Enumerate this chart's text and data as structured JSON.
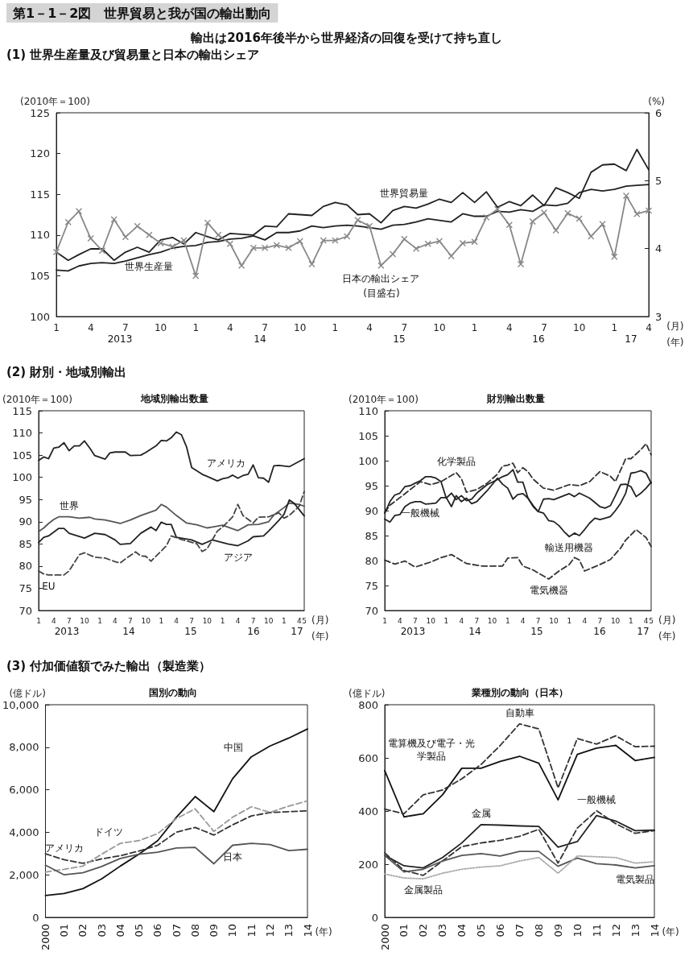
{
  "chart_data": [
    {
      "type": "line",
      "title": "第1－1－2図　世界貿易と我が国の輸出動向",
      "subtitle": "輸出は2016年後半から世界経済の回復を受けて持ち直し",
      "ylabel": "(2010年＝100)",
      "y2label": "(%)",
      "xlabel": "(月)\n(年)",
      "annotations": [
        "(1) 世界生産量及び貿易量と日本の輸出シェア",
        "(目盛右)",
        "2013",
        "14",
        "15",
        "16",
        "17"
      ],
      "x": [
        "2013-01",
        "2013-02",
        "2013-03",
        "2013-04",
        "2013-05",
        "2013-06",
        "2013-07",
        "2013-08",
        "2013-09",
        "2013-10",
        "2013-11",
        "2013-12",
        "2014-01",
        "2014-02",
        "2014-03",
        "2014-04",
        "2014-05",
        "2014-06",
        "2014-07",
        "2014-08",
        "2014-09",
        "2014-10",
        "2014-11",
        "2014-12",
        "2015-01",
        "2015-02",
        "2015-03",
        "2015-04",
        "2015-05",
        "2015-06",
        "2015-07",
        "2015-08",
        "2015-09",
        "2015-10",
        "2015-11",
        "2015-12",
        "2016-01",
        "2016-02",
        "2016-03",
        "2016-04",
        "2016-05",
        "2016-06",
        "2016-07",
        "2016-08",
        "2016-09",
        "2016-10",
        "2016-11",
        "2016-12",
        "2017-01",
        "2017-02",
        "2017-03",
        "2017-04"
      ],
      "xlim": [
        "2013-01",
        "2017-04"
      ],
      "xticks": [
        {
          "value": "2013-01",
          "label": "1"
        },
        {
          "value": "2013-04",
          "label": "4"
        },
        {
          "value": "2013-07",
          "label": "7"
        },
        {
          "value": "2013-10",
          "label": "10"
        },
        {
          "value": "2014-01",
          "label": "1"
        },
        {
          "value": "2014-04",
          "label": "4"
        },
        {
          "value": "2014-07",
          "label": "7"
        },
        {
          "value": "2014-10",
          "label": "10"
        },
        {
          "value": "2015-01",
          "label": "1"
        },
        {
          "value": "2015-04",
          "label": "4"
        },
        {
          "value": "2015-07",
          "label": "7"
        },
        {
          "value": "2015-10",
          "label": "10"
        },
        {
          "value": "2016-01",
          "label": "1"
        },
        {
          "value": "2016-04",
          "label": "4"
        },
        {
          "value": "2016-07",
          "label": "7"
        },
        {
          "value": "2016-10",
          "label": "10"
        },
        {
          "value": "2017-01",
          "label": "1"
        },
        {
          "value": "2017-04",
          "label": "4"
        }
      ],
      "ylim": [
        100,
        125
      ],
      "yticks": [
        100,
        105,
        110,
        115,
        120,
        125
      ],
      "y2lim": [
        3,
        6
      ],
      "y2ticks": [
        3,
        4,
        5,
        6
      ],
      "series": [
        {
          "name": "世界貿易量",
          "color": "#222222",
          "line_style": "solid",
          "marker": "none",
          "values": [
            107.9,
            106.9,
            107.6,
            108.3,
            108.3,
            106.9,
            107.9,
            108.5,
            107.9,
            109.4,
            109.7,
            108.9,
            110.3,
            109.8,
            109.4,
            110.2,
            110.1,
            110,
            111.1,
            111,
            112.6,
            112.5,
            112.4,
            113.5,
            114,
            113.7,
            112.5,
            112.6,
            111.5,
            113,
            113.5,
            113.3,
            113.8,
            114.4,
            114,
            115.2,
            114,
            115.3,
            113.4,
            114.1,
            113.6,
            114.9,
            113.6,
            115.8,
            115.2,
            114.5,
            117.7,
            118.6,
            118.7,
            117.9,
            120.5,
            118
          ]
        },
        {
          "name": "世界生産量",
          "color": "#222222",
          "line_style": "solid",
          "marker": "none",
          "values": [
            105.7,
            105.6,
            106.2,
            106.5,
            106.6,
            106.5,
            106.8,
            107.2,
            107.6,
            107.9,
            108.4,
            108.6,
            108.7,
            109.1,
            109.2,
            109.5,
            109.6,
            109.9,
            109.4,
            110.3,
            110.3,
            110.5,
            111.1,
            110.9,
            111.1,
            111.2,
            111.1,
            110.9,
            110.7,
            111.2,
            111.3,
            111.6,
            112,
            111.8,
            111.6,
            112.6,
            112.3,
            112.3,
            112.9,
            112.8,
            113.1,
            112.9,
            113.7,
            113.6,
            113.9,
            115.2,
            115.6,
            115.4,
            115.6,
            116,
            116.1,
            116.2
          ]
        },
        {
          "name": "日本の輸出シェア",
          "color": "#888888",
          "line_style": "solid",
          "marker": "cross",
          "axis": "y2",
          "values": [
            3.95,
            4.39,
            4.55,
            4.15,
            3.97,
            4.43,
            4.17,
            4.33,
            4.2,
            4.08,
            4.03,
            4.12,
            3.6,
            4.38,
            4.2,
            4.07,
            3.75,
            4.01,
            4.01,
            4.05,
            4.01,
            4.11,
            3.77,
            4.12,
            4.12,
            4.18,
            4.42,
            4.33,
            3.75,
            3.92,
            4.14,
            4,
            4.07,
            4.11,
            3.89,
            4.08,
            4.1,
            4.46,
            4.58,
            4.35,
            3.77,
            4.4,
            4.53,
            4.27,
            4.52,
            4.44,
            4.18,
            4.36,
            3.88,
            4.78,
            4.51,
            4.56
          ]
        }
      ],
      "grid": false
    },
    {
      "type": "line",
      "title": "地域別輸出数量",
      "ylabel": "(2010年＝100)",
      "xlabel": "(月)\n(年)",
      "annotations": [
        "(2) 財別・地域別輸出",
        "2013",
        "14",
        "15",
        "16",
        "17"
      ],
      "xlim": [
        "2013-01",
        "2017-05"
      ],
      "xticks": [
        {
          "value": "2013-01",
          "label": "1"
        },
        {
          "value": "2013-04",
          "label": "4"
        },
        {
          "value": "2013-07",
          "label": "7"
        },
        {
          "value": "2013-10",
          "label": "10"
        },
        {
          "value": "2014-01",
          "label": "1"
        },
        {
          "value": "2014-04",
          "label": "4"
        },
        {
          "value": "2014-07",
          "label": "7"
        },
        {
          "value": "2014-10",
          "label": "10"
        },
        {
          "value": "2015-01",
          "label": "1"
        },
        {
          "value": "2015-04",
          "label": "4"
        },
        {
          "value": "2015-07",
          "label": "7"
        },
        {
          "value": "2015-10",
          "label": "10"
        },
        {
          "value": "2016-01",
          "label": "1"
        },
        {
          "value": "2016-04",
          "label": "4"
        },
        {
          "value": "2016-07",
          "label": "7"
        },
        {
          "value": "2016-10",
          "label": "10"
        },
        {
          "value": "2017-01",
          "label": "1"
        },
        {
          "value": "2017-04",
          "label": "4"
        },
        {
          "value": "2017-05",
          "label": "5"
        }
      ],
      "ylim": [
        70,
        115
      ],
      "yticks": [
        70,
        75,
        80,
        85,
        90,
        95,
        100,
        105,
        110,
        115
      ],
      "series": [
        {
          "name": "アメリカ",
          "color": "#222222",
          "line_style": "solid",
          "x": [
            "2013-01",
            "2013-02",
            "2013-03",
            "2013-04",
            "2013-05",
            "2013-06",
            "2013-07",
            "2013-08",
            "2013-09",
            "2013-10",
            "2013-11",
            "2013-12",
            "2014-02",
            "2014-03",
            "2014-04",
            "2014-06",
            "2014-07",
            "2014-09",
            "2014-10",
            "2014-12",
            "2015-01",
            "2015-02",
            "2015-03",
            "2015-04",
            "2015-05",
            "2015-06",
            "2015-07",
            "2015-09",
            "2015-11",
            "2015-12",
            "2016-01",
            "2016-02",
            "2016-03",
            "2016-04",
            "2016-05",
            "2016-06",
            "2016-07",
            "2016-08",
            "2016-09",
            "2016-10",
            "2016-11",
            "2016-12",
            "2017-02",
            "2017-05"
          ],
          "values": [
            103.8,
            104.6,
            104.2,
            106.6,
            106.8,
            107.8,
            106,
            107.1,
            107.1,
            108.2,
            106.6,
            104.9,
            104.1,
            105.5,
            105.7,
            105.7,
            104.9,
            105,
            105.6,
            107.1,
            108.3,
            108.2,
            108.9,
            110.2,
            109.6,
            106.8,
            102.2,
            100.7,
            99.7,
            99.2,
            99.7,
            99.9,
            100.5,
            99.8,
            100.4,
            100.7,
            102.8,
            99.9,
            99.8,
            98.9,
            102.6,
            102.7,
            102.4,
            104.2
          ]
        },
        {
          "name": "世界",
          "color": "#555555",
          "line_style": "solid",
          "x": [
            "2013-01",
            "2013-02",
            "2013-03",
            "2013-04",
            "2013-05",
            "2013-07",
            "2013-09",
            "2013-11",
            "2013-12",
            "2014-02",
            "2014-04",
            "2014-05",
            "2014-07",
            "2014-09",
            "2014-12",
            "2015-01",
            "2015-02",
            "2015-04",
            "2015-06",
            "2015-08",
            "2015-10",
            "2015-11",
            "2016-01",
            "2016-04",
            "2016-06",
            "2016-08",
            "2016-10",
            "2016-11",
            "2017-01",
            "2017-02",
            "2017-04",
            "2017-05"
          ],
          "values": [
            87.8,
            88.6,
            89.6,
            90.5,
            91.1,
            91.1,
            90.8,
            91,
            90.6,
            90.4,
            89.9,
            89.6,
            90.4,
            91.4,
            92.6,
            93.9,
            93.3,
            91.4,
            89.7,
            89.3,
            88.6,
            88.8,
            89.2,
            88,
            89.3,
            89.4,
            90,
            91.5,
            93.2,
            94.2,
            93.9,
            93.5
          ]
        },
        {
          "name": "アジア",
          "color": "#222222",
          "line_style": "solid",
          "x": [
            "2013-01",
            "2013-02",
            "2013-03",
            "2013-05",
            "2013-06",
            "2013-07",
            "2013-10",
            "2013-12",
            "2014-02",
            "2014-04",
            "2014-05",
            "2014-07",
            "2014-09",
            "2014-11",
            "2014-12",
            "2015-01",
            "2015-02",
            "2015-03",
            "2015-04",
            "2015-07",
            "2015-09",
            "2015-11",
            "2016-02",
            "2016-04",
            "2016-06",
            "2016-07",
            "2016-09",
            "2016-10",
            "2016-12",
            "2017-01",
            "2017-02",
            "2017-03",
            "2017-05"
          ],
          "values": [
            85.3,
            86.5,
            86.8,
            88.5,
            88.5,
            87.4,
            86.3,
            87.4,
            87.1,
            85.9,
            84.9,
            85.1,
            87.4,
            88.8,
            88,
            89.9,
            89.4,
            89.4,
            86.5,
            85.9,
            84.9,
            85.9,
            85,
            84.6,
            85.7,
            86.6,
            86.8,
            87.9,
            90.3,
            91.7,
            94.9,
            94.2,
            91.3
          ]
        },
        {
          "name": "EU",
          "color": "#444444",
          "line_style": "dashed",
          "x": [
            "2013-01",
            "2013-02",
            "2013-03",
            "2013-06",
            "2013-07",
            "2013-09",
            "2013-10",
            "2013-12",
            "2014-02",
            "2014-04",
            "2014-05",
            "2014-06",
            "2014-08",
            "2014-09",
            "2014-10",
            "2014-11",
            "2015-02",
            "2015-03",
            "2015-05",
            "2015-08",
            "2015-09",
            "2015-10",
            "2015-12",
            "2016-01",
            "2016-03",
            "2016-04",
            "2016-05",
            "2016-07",
            "2016-08",
            "2016-10",
            "2016-12",
            "2017-01",
            "2017-02",
            "2017-04",
            "2017-05"
          ],
          "values": [
            78.9,
            78.2,
            78,
            78,
            78.9,
            82.6,
            83,
            82,
            81.8,
            81,
            80.7,
            81.6,
            83.2,
            82.3,
            82.2,
            81.1,
            84.6,
            86.8,
            86,
            85,
            83.3,
            83.9,
            87.9,
            88.8,
            91.1,
            93.9,
            91.4,
            89.7,
            91,
            91.1,
            92,
            90.8,
            91.4,
            93.5,
            96.8
          ]
        }
      ],
      "grid": false
    },
    {
      "type": "line",
      "title": "財別輸出数量",
      "ylabel": "(2010年＝100)",
      "xlabel": "(月)\n(年)",
      "annotations": [
        "2013",
        "14",
        "15",
        "16",
        "17"
      ],
      "xlim": [
        "2013-01",
        "2017-05"
      ],
      "xticks": [
        {
          "value": "2013-01",
          "label": "1"
        },
        {
          "value": "2013-04",
          "label": "4"
        },
        {
          "value": "2013-07",
          "label": "7"
        },
        {
          "value": "2013-10",
          "label": "10"
        },
        {
          "value": "2014-01",
          "label": "1"
        },
        {
          "value": "2014-04",
          "label": "4"
        },
        {
          "value": "2014-07",
          "label": "7"
        },
        {
          "value": "2014-10",
          "label": "10"
        },
        {
          "value": "2015-01",
          "label": "1"
        },
        {
          "value": "2015-04",
          "label": "4"
        },
        {
          "value": "2015-07",
          "label": "7"
        },
        {
          "value": "2015-10",
          "label": "10"
        },
        {
          "value": "2016-01",
          "label": "1"
        },
        {
          "value": "2016-04",
          "label": "4"
        },
        {
          "value": "2016-07",
          "label": "7"
        },
        {
          "value": "2016-10",
          "label": "10"
        },
        {
          "value": "2017-01",
          "label": "1"
        },
        {
          "value": "2017-04",
          "label": "4"
        },
        {
          "value": "2017-05",
          "label": "5"
        }
      ],
      "ylim": [
        70,
        110
      ],
      "yticks": [
        70,
        75,
        80,
        85,
        90,
        95,
        100,
        105,
        110
      ],
      "series": [
        {
          "name": "化学製品",
          "color": "#333333",
          "line_style": "dashed",
          "x": [
            "2013-01",
            "2013-02",
            "2013-04",
            "2013-06",
            "2013-08",
            "2013-10",
            "2013-12",
            "2014-03",
            "2014-04",
            "2014-05",
            "2014-07",
            "2014-09",
            "2014-11",
            "2014-12",
            "2015-01",
            "2015-02",
            "2015-03",
            "2015-04",
            "2015-05",
            "2015-06",
            "2015-08",
            "2015-10",
            "2016-01",
            "2016-03",
            "2016-05",
            "2016-07",
            "2016-09",
            "2016-10",
            "2016-12",
            "2017-01",
            "2017-03",
            "2017-04",
            "2017-05"
          ],
          "values": [
            89.6,
            91.1,
            92.6,
            94.2,
            95.8,
            95.2,
            95.8,
            97.6,
            96.4,
            93.7,
            94.2,
            95.5,
            97.3,
            98.9,
            99.1,
            99.5,
            97.6,
            98.6,
            97.8,
            96.3,
            94.5,
            94.1,
            95.2,
            95,
            95.8,
            97.8,
            96.9,
            95.8,
            100.4,
            100.4,
            102.2,
            103.4,
            101.2
          ]
        },
        {
          "name": "一般機械",
          "color": "#222222",
          "line_style": "solid",
          "x": [
            "2013-01",
            "2013-02",
            "2013-03",
            "2013-04",
            "2013-05",
            "2013-06",
            "2013-07",
            "2013-08",
            "2013-09",
            "2013-10",
            "2013-11",
            "2013-12",
            "2014-01",
            "2014-02",
            "2014-03",
            "2014-04",
            "2014-05",
            "2014-06",
            "2014-07",
            "2014-09",
            "2014-11",
            "2014-12",
            "2015-01",
            "2015-02",
            "2015-03",
            "2015-04",
            "2015-05",
            "2015-06",
            "2015-07",
            "2015-08",
            "2015-09",
            "2015-10",
            "2015-12",
            "2016-01",
            "2016-02",
            "2016-03",
            "2016-05",
            "2016-07",
            "2016-08",
            "2016-09",
            "2016-10",
            "2016-11",
            "2016-12",
            "2017-01",
            "2017-02",
            "2017-03",
            "2017-04",
            "2017-05"
          ],
          "values": [
            88.3,
            87.7,
            89,
            89.2,
            90.8,
            91.5,
            91.8,
            91.8,
            91.3,
            91.4,
            91.5,
            92.6,
            92.6,
            90.8,
            93,
            91.8,
            92.5,
            91.4,
            91.8,
            94,
            96.5,
            95.3,
            94.5,
            92.3,
            93.2,
            93.4,
            92.5,
            90.8,
            89.8,
            92.3,
            92.4,
            92.2,
            93,
            93.4,
            92.8,
            93.5,
            92.5,
            90.8,
            90.5,
            91,
            93,
            95.2,
            95.3,
            94.8,
            92.8,
            93.5,
            94.5,
            95.7
          ]
        },
        {
          "name": "輸送用機器",
          "color": "#222222",
          "line_style": "solid",
          "x": [
            "2013-01",
            "2013-02",
            "2013-03",
            "2013-04",
            "2013-05",
            "2013-06",
            "2013-07",
            "2013-08",
            "2013-09",
            "2013-10",
            "2013-11",
            "2013-12",
            "2014-01",
            "2014-02",
            "2014-03",
            "2014-04",
            "2014-05",
            "2014-06",
            "2014-07",
            "2014-09",
            "2014-11",
            "2014-12",
            "2015-01",
            "2015-02",
            "2015-03",
            "2015-04",
            "2015-05",
            "2015-06",
            "2015-07",
            "2015-08",
            "2015-09",
            "2015-10",
            "2015-11",
            "2015-12",
            "2016-01",
            "2016-02",
            "2016-03",
            "2016-04",
            "2016-05",
            "2016-06",
            "2016-07",
            "2016-08",
            "2016-09",
            "2016-10",
            "2016-11",
            "2016-12",
            "2017-01",
            "2017-02",
            "2017-03",
            "2017-04",
            "2017-05"
          ],
          "values": [
            89.5,
            91.8,
            93.1,
            93.5,
            94.8,
            95,
            95.5,
            96,
            96.8,
            96.8,
            96.5,
            95.8,
            92.5,
            93.5,
            92.2,
            93,
            92,
            92.3,
            93.5,
            95.2,
            96.2,
            96.8,
            97.2,
            98.2,
            95.7,
            95.7,
            92.5,
            91,
            89.8,
            89.5,
            88,
            87.8,
            87,
            85.8,
            84.8,
            85.5,
            85,
            86.2,
            87.5,
            88.5,
            88.2,
            88.5,
            88.8,
            90,
            91.5,
            93.5,
            97.5,
            97.7,
            98,
            97.5,
            95.5
          ]
        },
        {
          "name": "電気機器",
          "color": "#333333",
          "line_style": "dashed",
          "x": [
            "2013-01",
            "2013-03",
            "2013-05",
            "2013-07",
            "2013-10",
            "2013-12",
            "2014-02",
            "2014-05",
            "2014-08",
            "2014-12",
            "2015-01",
            "2015-03",
            "2015-04",
            "2015-06",
            "2015-09",
            "2015-11",
            "2016-01",
            "2016-02",
            "2016-03",
            "2016-04",
            "2016-07",
            "2016-09",
            "2016-11",
            "2016-12",
            "2017-02",
            "2017-04",
            "2017-05"
          ],
          "values": [
            80.1,
            79.3,
            79.9,
            78.7,
            79.7,
            80.6,
            81.2,
            79.4,
            78.9,
            78.9,
            80.5,
            80.6,
            78.9,
            78.1,
            76.3,
            77.9,
            79.2,
            80.6,
            80.1,
            77.9,
            79.2,
            80.2,
            82.5,
            84.1,
            86.2,
            84.6,
            82.8
          ]
        }
      ],
      "grid": false
    },
    {
      "type": "line",
      "title": "国別の動向",
      "ylabel": "(億ドル)",
      "xlabel": "(年)",
      "annotations": [
        "(3) 付加価値額でみた輸出（製造業）"
      ],
      "categories": [
        "2000",
        "01",
        "02",
        "03",
        "04",
        "05",
        "06",
        "07",
        "08",
        "09",
        "10",
        "11",
        "12",
        "13",
        "14"
      ],
      "ylim": [
        0,
        10000
      ],
      "yticks": [
        0,
        {
          "value": 2000,
          "label": "2,000"
        },
        {
          "value": 4000,
          "label": "4,000"
        },
        {
          "value": 6000,
          "label": "6,000"
        },
        {
          "value": 8000,
          "label": "8,000"
        },
        {
          "value": 10000,
          "label": "10,000"
        }
      ],
      "series": [
        {
          "name": "中国",
          "color": "#111111",
          "line_style": "solid",
          "values": [
            1030,
            1120,
            1350,
            1810,
            2410,
            2970,
            3610,
            4710,
            5680,
            4970,
            6520,
            7550,
            8060,
            8430,
            8860
          ]
        },
        {
          "name": "アメリカ",
          "color": "#333333",
          "line_style": "dashed",
          "values": [
            2990,
            2710,
            2540,
            2750,
            2900,
            3120,
            3390,
            4010,
            4230,
            3870,
            4350,
            4770,
            4930,
            4970,
            5010
          ]
        },
        {
          "name": "ドイツ",
          "color": "#999999",
          "line_style": "dashed",
          "values": [
            2130,
            2260,
            2410,
            2970,
            3480,
            3610,
            3940,
            4650,
            5100,
            4040,
            4710,
            5200,
            4940,
            5230,
            5480
          ]
        },
        {
          "name": "日本",
          "color": "#555555",
          "line_style": "solid",
          "values": [
            2450,
            2000,
            2100,
            2390,
            2770,
            2970,
            3060,
            3260,
            3290,
            2520,
            3390,
            3480,
            3420,
            3140,
            3200
          ]
        }
      ],
      "grid": false
    },
    {
      "type": "line",
      "title": "業種別の動向（日本）",
      "ylabel": "(億ドル)",
      "xlabel": "(年)",
      "categories": [
        "2000",
        "01",
        "02",
        "03",
        "04",
        "05",
        "06",
        "07",
        "08",
        "09",
        "10",
        "11",
        "12",
        "13",
        "14"
      ],
      "ylim": [
        0,
        800
      ],
      "yticks": [
        0,
        200,
        400,
        600,
        800
      ],
      "series": [
        {
          "name": "電算機及び電子・光学製品",
          "color": "#111111",
          "line_style": "solid",
          "values": [
            552,
            378,
            390,
            461,
            561,
            561,
            587,
            606,
            580,
            442,
            613,
            637,
            647,
            590,
            602
          ]
        },
        {
          "name": "自動車",
          "color": "#333333",
          "line_style": "dashed",
          "values": [
            407,
            390,
            461,
            479,
            521,
            575,
            647,
            728,
            709,
            487,
            673,
            652,
            683,
            642,
            644
          ]
        },
        {
          "name": "金属",
          "color": "#222222",
          "line_style": "solid",
          "values": [
            233,
            194,
            186,
            225,
            280,
            349,
            347,
            344,
            342,
            264,
            285,
            383,
            362,
            326,
            328
          ]
        },
        {
          "name": "一般機械",
          "color": "#333333",
          "line_style": "dashed",
          "values": [
            243,
            176,
            158,
            212,
            266,
            280,
            290,
            305,
            331,
            204,
            336,
            401,
            352,
            316,
            326
          ]
        },
        {
          "name": "電気製品",
          "color": "#555555",
          "line_style": "solid",
          "values": [
            233,
            171,
            181,
            212,
            233,
            240,
            231,
            248,
            248,
            192,
            223,
            202,
            197,
            186,
            194
          ]
        },
        {
          "name": "金属製品",
          "color": "#aaaaaa",
          "line_style": "dotted",
          "values": [
            163,
            148,
            145,
            166,
            181,
            189,
            194,
            212,
            225,
            166,
            231,
            228,
            225,
            204,
            209
          ]
        }
      ],
      "grid": false
    }
  ]
}
